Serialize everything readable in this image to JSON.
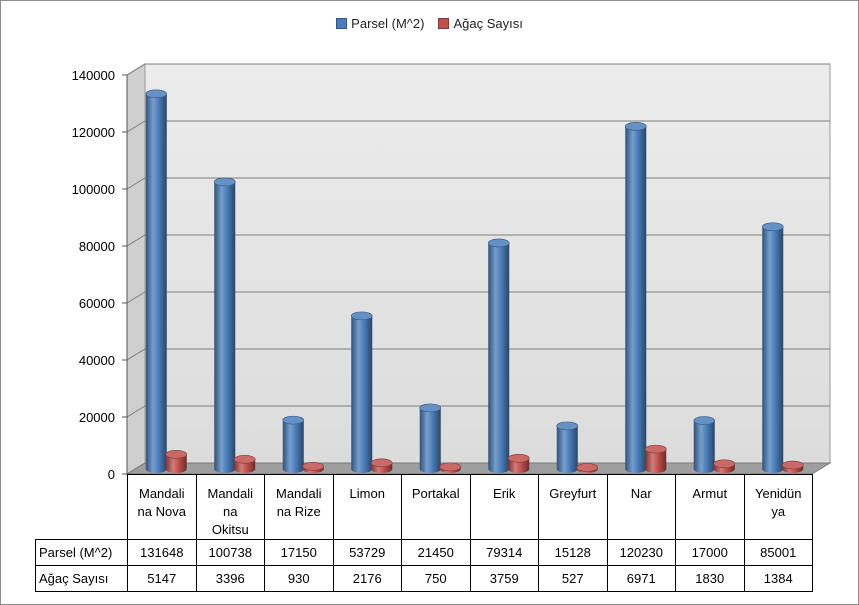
{
  "chart_data": {
    "type": "bar",
    "title": "",
    "xlabel": "",
    "ylabel": "",
    "ylim": [
      0,
      140000
    ],
    "yticks": [
      "0",
      "20000",
      "40000",
      "60000",
      "80000",
      "100000",
      "120000",
      "140000"
    ],
    "grid": true,
    "legend": "top",
    "categories": [
      "Mandalina Nova",
      "Mandalina Okitsu",
      "Mandalina Rize",
      "Limon",
      "Portakal",
      "Erik",
      "Greyfurt",
      "Nar",
      "Armut",
      "Yenidünya"
    ],
    "series": [
      {
        "name": "Parsel (M^2)",
        "color": "#4a7ebb",
        "values": [
          131648,
          100738,
          17150,
          53729,
          21450,
          79314,
          15128,
          120230,
          17000,
          85001
        ]
      },
      {
        "name": "Ağaç Sayısı",
        "color": "#c0504d",
        "values": [
          5147,
          3396,
          930,
          2176,
          750,
          3759,
          527,
          6971,
          1830,
          1384
        ]
      }
    ],
    "data_table": {
      "category_lines": [
        [
          "Mandali",
          "na Nova"
        ],
        [
          "Mandali",
          "na",
          "Okitsu"
        ],
        [
          "Mandali",
          "na Rize"
        ],
        [
          "Limon"
        ],
        [
          "Portakal"
        ],
        [
          "Erik"
        ],
        [
          "Greyfurt"
        ],
        [
          "Nar"
        ],
        [
          "Armut"
        ],
        [
          "Yenidün",
          "ya"
        ]
      ],
      "row_labels": [
        "Parsel (M^2)",
        "Ağaç Sayısı"
      ]
    }
  }
}
